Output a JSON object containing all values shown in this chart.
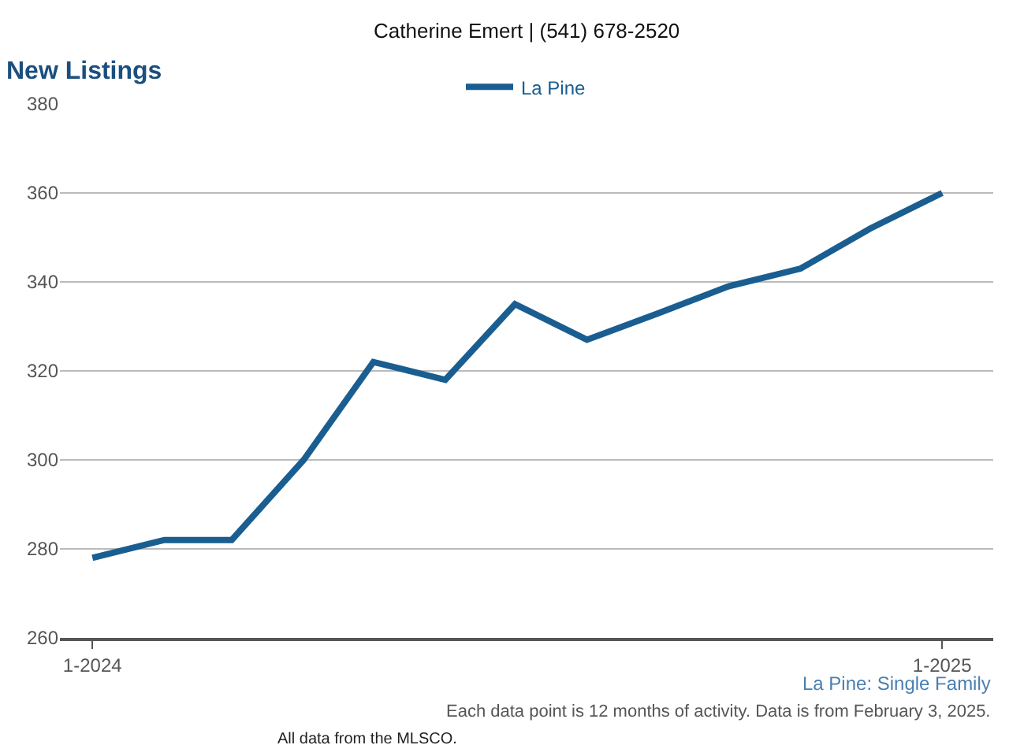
{
  "chart_data": {
    "type": "line",
    "title": "New Listings",
    "subtitle": "Catherine Emert | (541) 678-2520",
    "x": [
      "2024-01",
      "2024-02",
      "2024-03",
      "2024-04",
      "2024-05",
      "2024-06",
      "2024-07",
      "2024-08",
      "2024-09",
      "2024-10",
      "2024-11",
      "2024-12",
      "2025-01"
    ],
    "series": [
      {
        "name": "La Pine",
        "color": "#1a5e91",
        "values": [
          278,
          282,
          282,
          300,
          322,
          318,
          335,
          327,
          333,
          339,
          343,
          352,
          360
        ]
      }
    ],
    "xlim": [
      "2023-12-18",
      "2025-01-23"
    ],
    "xticks": [
      {
        "value": "2024-01",
        "label": "1-2024"
      },
      {
        "value": "2025-01",
        "label": "1-2025"
      }
    ],
    "ylim": [
      260,
      380
    ],
    "yticks": [
      260,
      280,
      300,
      320,
      340,
      360,
      380
    ],
    "grid": "y",
    "legend": "top",
    "marker": "none",
    "line_style": "solid",
    "annotations": [
      "La Pine: Single Family",
      "Each data point is 12 months of activity. Data is from February 3, 2025.",
      "All data from the MLSCO."
    ]
  }
}
